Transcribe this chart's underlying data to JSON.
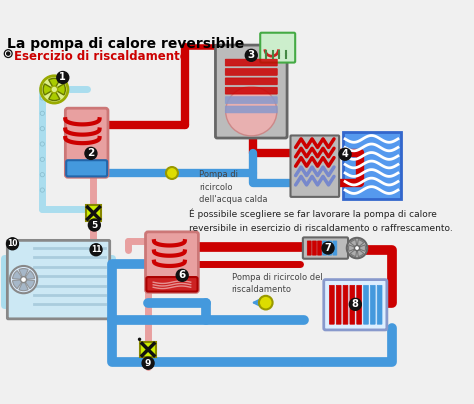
{
  "title": "La pompa di calore reversibile",
  "subtitle": "Esercizio di riscaldamento",
  "subtitle_color": "#cc0000",
  "bg_color": "#f0f0f0",
  "text_body": "É possibile scegliere se far lavorare la pompa di calore\nreversibile in esercizio di riscaldamento o raffrescamento.",
  "label_2": "Pompa di\nricircolo\ndell'acqua calda",
  "label_6": "Pompa di ricircolo del\nriscaldamento",
  "RED": "#cc0000",
  "BLUE": "#4499dd",
  "PINK": "#e8a0a0",
  "LB": "#aaddee",
  "YELLOW": "#dddd00",
  "CYAN": "#00ccaa",
  "BLACK": "#111111",
  "GRAY": "#888888",
  "LGRAY": "#bbbbbb",
  "DGRAY": "#666666",
  "figsize": [
    4.74,
    4.04
  ],
  "dpi": 100
}
